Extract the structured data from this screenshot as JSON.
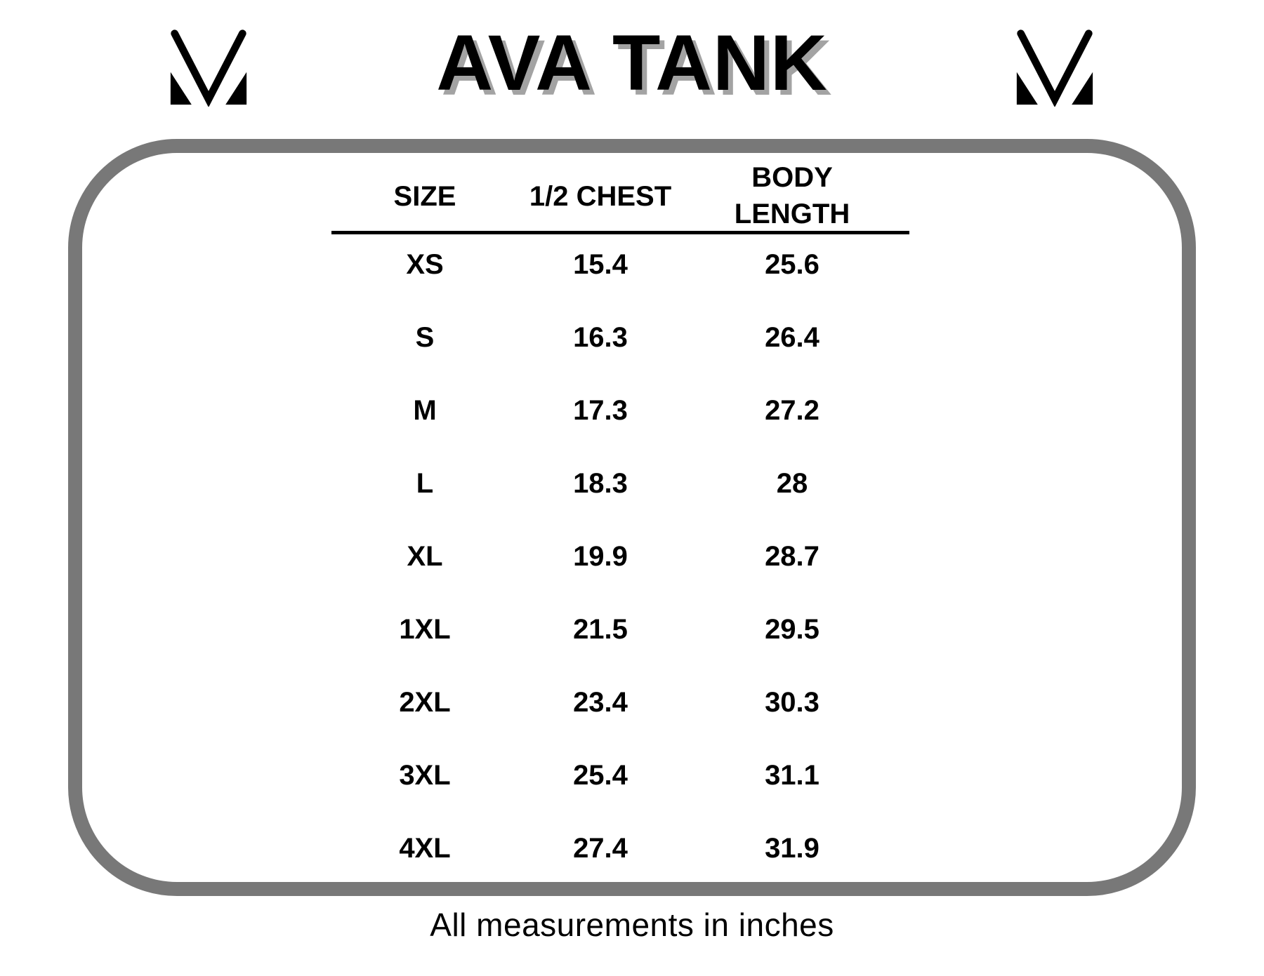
{
  "page": {
    "title": "AVA TANK",
    "footer_note": "All measurements in inches"
  },
  "size_chart": {
    "headers": {
      "size": "SIZE",
      "half_chest": "1/2 CHEST",
      "body_line1": "BODY",
      "body_line2": "LENGTH"
    },
    "rows": [
      {
        "size": "XS",
        "half_chest": "15.4",
        "body_length": "25.6"
      },
      {
        "size": "S",
        "half_chest": "16.3",
        "body_length": "26.4"
      },
      {
        "size": "M",
        "half_chest": "17.3",
        "body_length": "27.2"
      },
      {
        "size": "L",
        "half_chest": "18.3",
        "body_length": "28"
      },
      {
        "size": "XL",
        "half_chest": "19.9",
        "body_length": "28.7"
      },
      {
        "size": "1XL",
        "half_chest": "21.5",
        "body_length": "29.5"
      },
      {
        "size": "2XL",
        "half_chest": "23.4",
        "body_length": "30.3"
      },
      {
        "size": "3XL",
        "half_chest": "25.4",
        "body_length": "31.1"
      },
      {
        "size": "4XL",
        "half_chest": "27.4",
        "body_length": "31.9"
      }
    ]
  },
  "colors": {
    "background": "#ffffff",
    "text": "#000000",
    "title_shadow": "#a3a3a3",
    "frame_border": "#787878"
  },
  "icons": {
    "brand_monogram": "mv-monogram-icon"
  }
}
